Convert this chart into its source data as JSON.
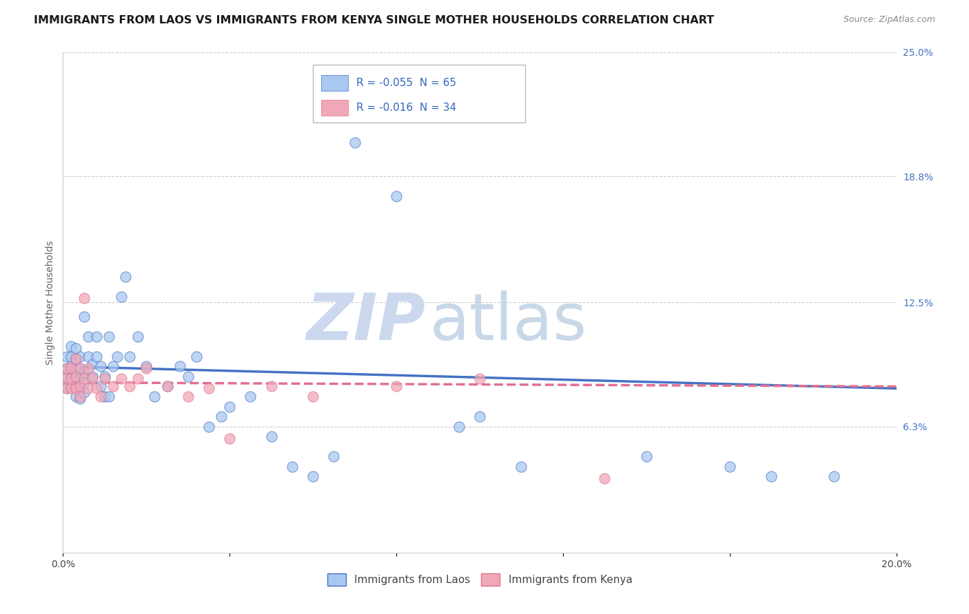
{
  "title": "IMMIGRANTS FROM LAOS VS IMMIGRANTS FROM KENYA SINGLE MOTHER HOUSEHOLDS CORRELATION CHART",
  "source": "Source: ZipAtlas.com",
  "ylabel": "Single Mother Households",
  "x_min": 0.0,
  "x_max": 0.2,
  "y_min": 0.0,
  "y_max": 0.25,
  "x_ticks": [
    0.0,
    0.04,
    0.08,
    0.12,
    0.16,
    0.2
  ],
  "x_tick_labels": [
    "0.0%",
    "",
    "",
    "",
    "",
    "20.0%"
  ],
  "y_ticks_right": [
    0.063,
    0.125,
    0.188,
    0.25
  ],
  "y_tick_labels_right": [
    "6.3%",
    "12.5%",
    "18.8%",
    "25.0%"
  ],
  "laos_R": -0.055,
  "laos_N": 65,
  "kenya_R": -0.016,
  "kenya_N": 34,
  "laos_color": "#a8c8f0",
  "kenya_color": "#f0a8b8",
  "laos_line_color": "#4472c4",
  "kenya_line_color": "#e07090",
  "watermark_zip_color": "#ccd8ee",
  "watermark_atlas_color": "#c8d8e8",
  "title_fontsize": 11.5,
  "label_fontsize": 10,
  "tick_fontsize": 10,
  "legend_label_laos": "Immigrants from Laos",
  "legend_label_kenya": "Immigrants from Kenya",
  "laos_line_start_y": 0.093,
  "laos_line_end_y": 0.082,
  "kenya_line_start_y": 0.085,
  "kenya_line_end_y": 0.083,
  "laos_x": [
    0.001,
    0.001,
    0.001,
    0.001,
    0.002,
    0.002,
    0.002,
    0.002,
    0.002,
    0.003,
    0.003,
    0.003,
    0.003,
    0.003,
    0.003,
    0.004,
    0.004,
    0.004,
    0.004,
    0.004,
    0.005,
    0.005,
    0.005,
    0.005,
    0.006,
    0.006,
    0.007,
    0.007,
    0.008,
    0.008,
    0.009,
    0.009,
    0.01,
    0.01,
    0.011,
    0.011,
    0.012,
    0.013,
    0.014,
    0.015,
    0.016,
    0.018,
    0.02,
    0.022,
    0.025,
    0.028,
    0.03,
    0.032,
    0.035,
    0.038,
    0.04,
    0.045,
    0.05,
    0.055,
    0.06,
    0.065,
    0.07,
    0.08,
    0.095,
    0.1,
    0.11,
    0.14,
    0.16,
    0.17,
    0.185
  ],
  "laos_y": [
    0.082,
    0.088,
    0.092,
    0.098,
    0.083,
    0.088,
    0.093,
    0.098,
    0.103,
    0.078,
    0.083,
    0.088,
    0.092,
    0.097,
    0.102,
    0.077,
    0.082,
    0.087,
    0.092,
    0.098,
    0.08,
    0.085,
    0.09,
    0.118,
    0.098,
    0.108,
    0.088,
    0.094,
    0.098,
    0.108,
    0.083,
    0.093,
    0.078,
    0.088,
    0.078,
    0.108,
    0.093,
    0.098,
    0.128,
    0.138,
    0.098,
    0.108,
    0.093,
    0.078,
    0.083,
    0.093,
    0.088,
    0.098,
    0.063,
    0.068,
    0.073,
    0.078,
    0.058,
    0.043,
    0.038,
    0.048,
    0.205,
    0.178,
    0.063,
    0.068,
    0.043,
    0.048,
    0.043,
    0.038,
    0.038
  ],
  "kenya_x": [
    0.001,
    0.001,
    0.001,
    0.002,
    0.002,
    0.002,
    0.003,
    0.003,
    0.003,
    0.004,
    0.004,
    0.004,
    0.005,
    0.005,
    0.006,
    0.006,
    0.007,
    0.008,
    0.009,
    0.01,
    0.012,
    0.014,
    0.016,
    0.018,
    0.02,
    0.025,
    0.03,
    0.035,
    0.04,
    0.05,
    0.06,
    0.08,
    0.1,
    0.13
  ],
  "kenya_y": [
    0.082,
    0.087,
    0.092,
    0.082,
    0.087,
    0.092,
    0.082,
    0.088,
    0.097,
    0.078,
    0.083,
    0.092,
    0.087,
    0.127,
    0.082,
    0.092,
    0.087,
    0.082,
    0.078,
    0.087,
    0.083,
    0.087,
    0.083,
    0.087,
    0.092,
    0.083,
    0.078,
    0.082,
    0.057,
    0.083,
    0.078,
    0.083,
    0.087,
    0.037
  ]
}
